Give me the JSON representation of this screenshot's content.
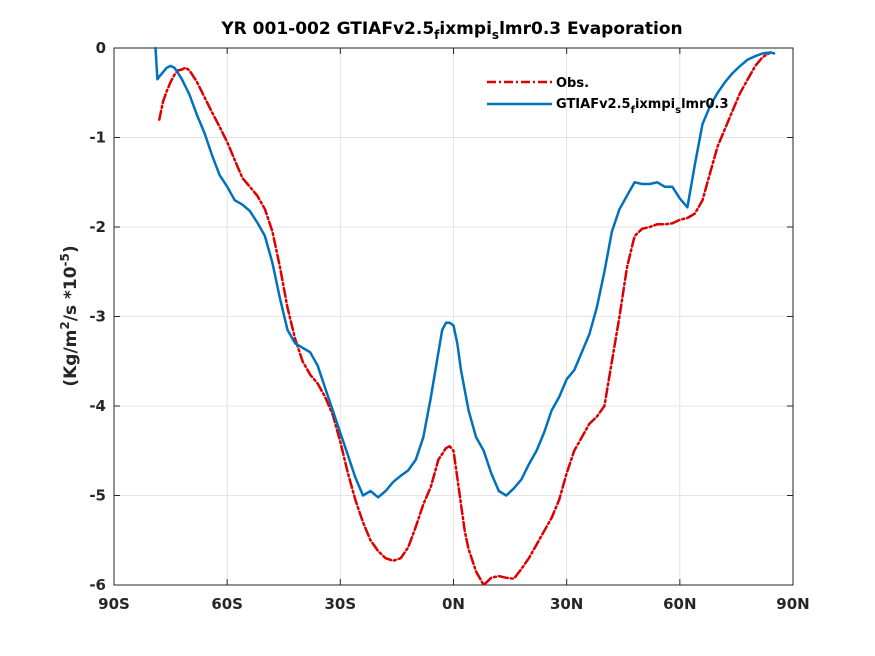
{
  "chart_data": {
    "type": "line",
    "title_parts": [
      "YR 001-002 GTIAFv2.5",
      "f",
      "ixmpi",
      "s",
      "lmr0.3 Evaporation"
    ],
    "ylabel_parts": [
      "(Kg/m",
      "2",
      "/s *10",
      "-5",
      ")"
    ],
    "xlim": [
      -90,
      90
    ],
    "ylim": [
      -6,
      0
    ],
    "xticks": [
      -90,
      -60,
      -30,
      0,
      30,
      60,
      90
    ],
    "xtick_labels": [
      "90S",
      "60S",
      "30S",
      "0N",
      "30N",
      "60N",
      "90N"
    ],
    "yticks": [
      0,
      -1,
      -2,
      -3,
      -4,
      -5,
      -6
    ],
    "ytick_labels": [
      "0",
      "-1",
      "-2",
      "-3",
      "-4",
      "-5",
      "-6"
    ],
    "grid": true,
    "legend_position": "top-right",
    "series": [
      {
        "legend_parts": [
          "Obs."
        ],
        "color": "#dd0000",
        "style": "dashdot",
        "x": [
          -78,
          -77,
          -76,
          -75,
          -74,
          -73,
          -72,
          -71,
          -70,
          -68,
          -66,
          -64,
          -62,
          -60,
          -58,
          -56,
          -54,
          -52,
          -50,
          -48,
          -46,
          -44,
          -42,
          -40,
          -38,
          -36,
          -34,
          -32,
          -30,
          -28,
          -26,
          -24,
          -22,
          -20,
          -18,
          -16,
          -14,
          -12,
          -10,
          -8,
          -6,
          -4,
          -2,
          -1,
          0,
          1,
          2,
          3,
          4,
          6,
          8,
          10,
          12,
          14,
          16,
          18,
          20,
          22,
          24,
          26,
          28,
          30,
          32,
          34,
          36,
          38,
          40,
          42,
          44,
          46,
          48,
          50,
          52,
          54,
          56,
          58,
          60,
          62,
          64,
          66,
          68,
          70,
          72,
          74,
          76,
          78,
          80,
          82,
          84
        ],
        "y": [
          -0.8,
          -0.6,
          -0.48,
          -0.38,
          -0.3,
          -0.25,
          -0.24,
          -0.22,
          -0.25,
          -0.38,
          -0.55,
          -0.72,
          -0.88,
          -1.05,
          -1.25,
          -1.45,
          -1.55,
          -1.65,
          -1.8,
          -2.05,
          -2.45,
          -2.9,
          -3.25,
          -3.5,
          -3.65,
          -3.75,
          -3.9,
          -4.1,
          -4.4,
          -4.75,
          -5.05,
          -5.3,
          -5.5,
          -5.62,
          -5.7,
          -5.73,
          -5.7,
          -5.58,
          -5.35,
          -5.1,
          -4.9,
          -4.6,
          -4.47,
          -4.45,
          -4.5,
          -4.8,
          -5.1,
          -5.4,
          -5.6,
          -5.85,
          -6.0,
          -5.92,
          -5.9,
          -5.92,
          -5.93,
          -5.82,
          -5.7,
          -5.55,
          -5.4,
          -5.25,
          -5.05,
          -4.75,
          -4.5,
          -4.35,
          -4.2,
          -4.12,
          -4.0,
          -3.5,
          -3.0,
          -2.45,
          -2.1,
          -2.02,
          -2.0,
          -1.97,
          -1.97,
          -1.96,
          -1.92,
          -1.9,
          -1.85,
          -1.7,
          -1.4,
          -1.1,
          -0.9,
          -0.7,
          -0.5,
          -0.35,
          -0.2,
          -0.1,
          -0.05
        ]
      },
      {
        "legend_parts": [
          "GTIAFv2.5",
          "f",
          "ixmpi",
          "s",
          "lmr0.3"
        ],
        "color": "#0072bd",
        "style": "solid",
        "x": [
          -79,
          -78.5,
          -78,
          -77,
          -76,
          -75,
          -74,
          -73,
          -72,
          -70,
          -68,
          -66,
          -64,
          -62,
          -60,
          -58,
          -56,
          -54,
          -52,
          -50,
          -48,
          -46,
          -44,
          -42,
          -40,
          -38,
          -36,
          -34,
          -32,
          -30,
          -28,
          -26,
          -24,
          -22,
          -20,
          -18,
          -16,
          -14,
          -12,
          -10,
          -8,
          -6,
          -4,
          -3,
          -2,
          -1,
          0,
          1,
          2,
          4,
          6,
          8,
          10,
          12,
          14,
          16,
          18,
          20,
          22,
          24,
          26,
          28,
          30,
          32,
          34,
          36,
          38,
          40,
          42,
          44,
          46,
          48,
          50,
          52,
          54,
          56,
          58,
          60,
          62,
          64,
          66,
          68,
          70,
          72,
          74,
          76,
          78,
          80,
          82,
          84,
          85
        ],
        "y": [
          0,
          -0.35,
          -0.32,
          -0.27,
          -0.22,
          -0.2,
          -0.22,
          -0.28,
          -0.35,
          -0.52,
          -0.75,
          -0.95,
          -1.2,
          -1.42,
          -1.55,
          -1.7,
          -1.75,
          -1.82,
          -1.95,
          -2.1,
          -2.4,
          -2.8,
          -3.15,
          -3.3,
          -3.35,
          -3.4,
          -3.55,
          -3.8,
          -4.05,
          -4.3,
          -4.55,
          -4.8,
          -5.0,
          -4.95,
          -5.02,
          -4.95,
          -4.85,
          -4.78,
          -4.72,
          -4.6,
          -4.35,
          -3.9,
          -3.4,
          -3.15,
          -3.07,
          -3.07,
          -3.1,
          -3.3,
          -3.6,
          -4.05,
          -4.35,
          -4.5,
          -4.75,
          -4.95,
          -5.0,
          -4.92,
          -4.82,
          -4.65,
          -4.5,
          -4.3,
          -4.05,
          -3.9,
          -3.7,
          -3.6,
          -3.4,
          -3.2,
          -2.9,
          -2.5,
          -2.05,
          -1.8,
          -1.65,
          -1.5,
          -1.52,
          -1.52,
          -1.5,
          -1.55,
          -1.55,
          -1.68,
          -1.78,
          -1.3,
          -0.85,
          -0.65,
          -0.5,
          -0.38,
          -0.28,
          -0.2,
          -0.13,
          -0.09,
          -0.06,
          -0.05,
          -0.06
        ]
      }
    ]
  }
}
